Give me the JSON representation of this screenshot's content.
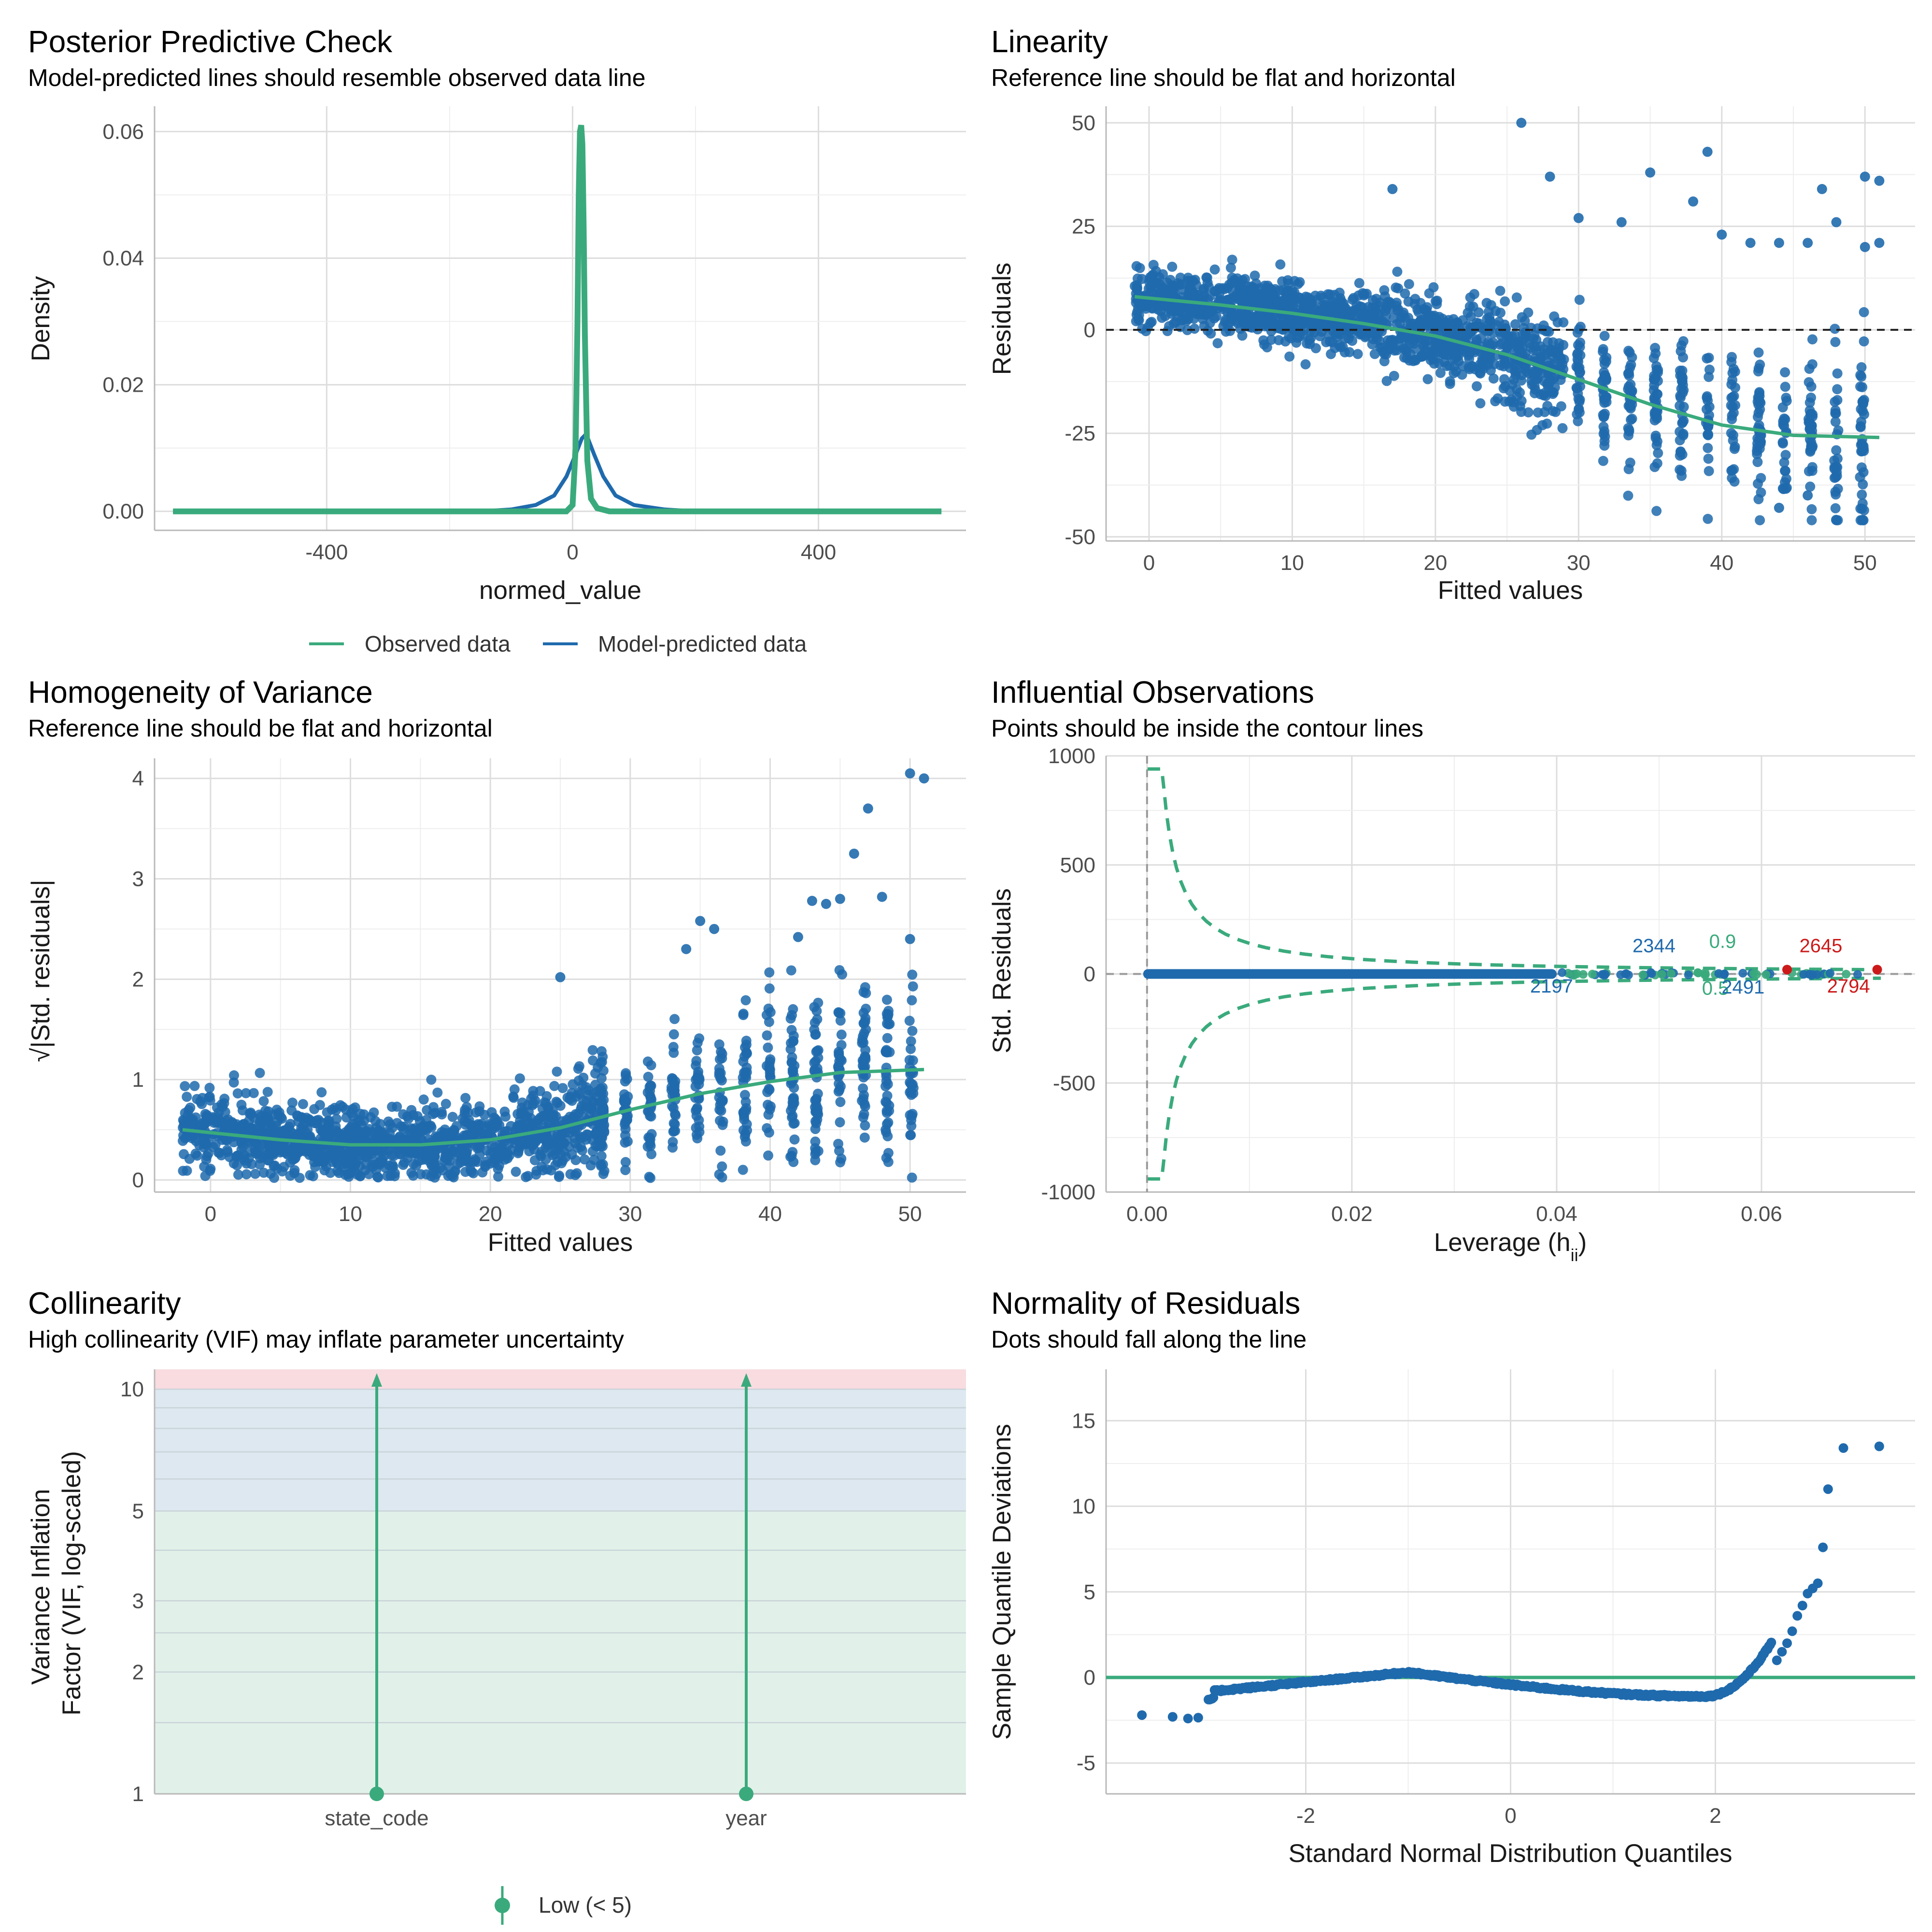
{
  "colors": {
    "observed": "#3aaa7c",
    "predicted": "#1f6aad",
    "points": "#1f6aad",
    "smooth": "#3aaa7c",
    "label_blue": "#1f6aad",
    "label_green": "#3aaa7c",
    "label_red": "#cc1a1a",
    "zone_low": "#e1f1ea",
    "zone_moderate": "#dde8f0",
    "zone_high": "#f8dce0",
    "grid_major": "#dddddd",
    "grid_minor": "#eeeeee",
    "axis": "#b9b9b9"
  },
  "chart_data": [
    {
      "id": "ppc",
      "type": "line",
      "title": "Posterior Predictive Check",
      "subtitle": "Model-predicted lines should resemble observed data line",
      "xlabel": "normed_value",
      "ylabel": "Density",
      "xlim": [
        -680,
        640
      ],
      "ylim": [
        -0.003,
        0.064
      ],
      "x_ticks": [
        -400,
        0,
        400
      ],
      "x_tick_labels": [
        "-400",
        "0",
        "400"
      ],
      "y_ticks": [
        0,
        0.02,
        0.04,
        0.06
      ],
      "y_tick_labels": [
        "0.00",
        "0.02",
        "0.04",
        "0.06"
      ],
      "legend": [
        "Observed data",
        "Model-predicted data"
      ],
      "legend_position": "bottom",
      "series": [
        {
          "name": "Model-predicted data",
          "x": [
            -650,
            -150,
            -100,
            -60,
            -30,
            -10,
            5,
            15,
            20,
            25,
            35,
            50,
            70,
            100,
            150,
            200,
            600
          ],
          "y": [
            0,
            0,
            0.0003,
            0.001,
            0.0025,
            0.0055,
            0.009,
            0.0115,
            0.012,
            0.0115,
            0.009,
            0.0055,
            0.0025,
            0.001,
            0.0003,
            0,
            0
          ]
        },
        {
          "name": "Observed data",
          "x": [
            -650,
            -10,
            0,
            5,
            8,
            10,
            12,
            14,
            16,
            18,
            20,
            24,
            30,
            40,
            60,
            600
          ],
          "y": [
            0,
            0,
            0.001,
            0.01,
            0.03,
            0.05,
            0.06,
            0.061,
            0.058,
            0.045,
            0.028,
            0.008,
            0.002,
            0.0005,
            0,
            0
          ]
        }
      ]
    },
    {
      "id": "linearity",
      "type": "scatter",
      "title": "Linearity",
      "subtitle": "Reference line should be flat and horizontal",
      "xlabel": "Fitted values",
      "ylabel": "Residuals",
      "xlim": [
        -3,
        53.5
      ],
      "ylim": [
        -51,
        54
      ],
      "x_ticks": [
        0,
        10,
        20,
        30,
        40,
        50
      ],
      "x_tick_labels": [
        "0",
        "10",
        "20",
        "30",
        "40",
        "50"
      ],
      "y_ticks": [
        -50,
        -25,
        0,
        25,
        50
      ],
      "y_tick_labels": [
        "-50",
        "-25",
        "0",
        "25",
        "50"
      ],
      "reference_line": 0,
      "outliers": [
        [
          26,
          50
        ],
        [
          39,
          43
        ],
        [
          50,
          37
        ],
        [
          51,
          36
        ],
        [
          47,
          34
        ],
        [
          17,
          34
        ],
        [
          28,
          37
        ],
        [
          35,
          38
        ],
        [
          30,
          27
        ],
        [
          33,
          26
        ],
        [
          38,
          31
        ],
        [
          42,
          21
        ],
        [
          44,
          21
        ],
        [
          46,
          21
        ],
        [
          48,
          26
        ],
        [
          40,
          23
        ],
        [
          50,
          20
        ],
        [
          51,
          21
        ],
        [
          46,
          -40
        ],
        [
          44,
          -43
        ]
      ],
      "smooth": {
        "x": [
          -1,
          5,
          10,
          15,
          20,
          25,
          30,
          35,
          40,
          45,
          51
        ],
        "y": [
          8,
          6,
          4,
          1.5,
          -1.5,
          -6,
          -12,
          -18,
          -23,
          -25.5,
          -26
        ]
      }
    },
    {
      "id": "homogeneity",
      "type": "scatter",
      "title": "Homogeneity of Variance",
      "subtitle": "Reference line should be flat and horizontal",
      "xlabel": "Fitted values",
      "ylabel": "√|Std. residuals|",
      "xlim": [
        -4,
        54
      ],
      "ylim": [
        -0.12,
        4.2
      ],
      "x_ticks": [
        0,
        10,
        20,
        30,
        40,
        50
      ],
      "x_tick_labels": [
        "0",
        "10",
        "20",
        "30",
        "40",
        "50"
      ],
      "y_ticks": [
        0,
        1,
        2,
        3,
        4
      ],
      "y_tick_labels": [
        "0",
        "1",
        "2",
        "3",
        "4"
      ],
      "outliers": [
        [
          50,
          4.05
        ],
        [
          51,
          4.0
        ],
        [
          47,
          3.7
        ],
        [
          46,
          3.25
        ],
        [
          35,
          2.58
        ],
        [
          36,
          2.5
        ],
        [
          43,
          2.78
        ],
        [
          45,
          2.8
        ],
        [
          48,
          2.82
        ],
        [
          50,
          2.4
        ],
        [
          25,
          2.02
        ],
        [
          34,
          2.3
        ],
        [
          44,
          2.75
        ],
        [
          42,
          2.42
        ]
      ],
      "smooth": {
        "x": [
          -2,
          5,
          10,
          15,
          20,
          25,
          30,
          35,
          40,
          45,
          51
        ],
        "y": [
          0.5,
          0.4,
          0.35,
          0.35,
          0.4,
          0.52,
          0.7,
          0.86,
          0.98,
          1.07,
          1.1
        ]
      }
    },
    {
      "id": "influential",
      "type": "scatter",
      "title": "Influential Observations",
      "subtitle": "Points should be inside the contour lines",
      "xlabel": "Leverage (h",
      "xlabel_sub": "ii",
      "xlabel_end": ")",
      "ylabel": "Std. Residuals",
      "xlim": [
        -0.004,
        0.075
      ],
      "ylim": [
        -1000,
        1000
      ],
      "x_ticks": [
        0,
        0.02,
        0.04,
        0.06
      ],
      "x_tick_labels": [
        "0.00",
        "0.02",
        "0.04",
        "0.06"
      ],
      "y_ticks": [
        -1000,
        -500,
        0,
        500,
        1000
      ],
      "y_tick_labels": [
        "-1000",
        "-500",
        "0",
        "500",
        "1000"
      ],
      "point_labels": [
        {
          "text": "2344",
          "x": 0.0495,
          "y": 100,
          "color": "blue"
        },
        {
          "text": "0.9",
          "x": 0.0562,
          "y": 120,
          "color": "green"
        },
        {
          "text": "2645",
          "x": 0.0658,
          "y": 100,
          "color": "red"
        },
        {
          "text": "2197",
          "x": 0.0395,
          "y": -85,
          "color": "blue"
        },
        {
          "text": "0.5",
          "x": 0.0555,
          "y": -95,
          "color": "green"
        },
        {
          "text": "2491",
          "x": 0.0582,
          "y": -90,
          "color": "blue"
        },
        {
          "text": "2794",
          "x": 0.0685,
          "y": -85,
          "color": "red"
        }
      ],
      "red_points": [
        [
          0.0625,
          20
        ],
        [
          0.0713,
          20
        ]
      ]
    },
    {
      "id": "collinearity",
      "type": "bar",
      "title": "Collinearity",
      "subtitle": "High collinearity (VIF) may inflate parameter uncertainty",
      "xlabel": "",
      "ylabel": "Variance Inflation\nFactor (VIF, log-scaled)",
      "ylabel_lines": [
        "Variance Inflation",
        "Factor (VIF, log-scaled)"
      ],
      "log_scale": true,
      "ylim": [
        1,
        11.2
      ],
      "y_ticks": [
        1,
        2,
        3,
        5,
        10
      ],
      "y_tick_labels": [
        "1",
        "2",
        "3",
        "5",
        "10"
      ],
      "categories": [
        "state_code",
        "year"
      ],
      "zones": [
        {
          "name": "low",
          "from": 1,
          "to": 5
        },
        {
          "name": "moderate",
          "from": 5,
          "to": 10
        },
        {
          "name": "high",
          "from": 10,
          "to": 11.2
        }
      ],
      "legend": [
        "Low (< 5)"
      ],
      "legend_position": "bottom"
    },
    {
      "id": "normality",
      "type": "scatter",
      "title": "Normality of Residuals",
      "subtitle": "Dots should fall along the line",
      "xlabel": "Standard Normal Distribution Quantiles",
      "ylabel": "Sample Quantile Deviations",
      "xlim": [
        -3.95,
        3.95
      ],
      "ylim": [
        -6.8,
        18
      ],
      "x_ticks": [
        -2,
        0,
        2
      ],
      "x_tick_labels": [
        "-2",
        "0",
        "2"
      ],
      "y_ticks": [
        -5,
        0,
        5,
        10,
        15
      ],
      "y_tick_labels": [
        "-5",
        "0",
        "5",
        "10",
        "15"
      ],
      "reference_line": 0,
      "tail_points": [
        [
          -3.6,
          -2.2
        ],
        [
          -3.3,
          -2.3
        ],
        [
          -3.15,
          -2.4
        ],
        [
          -3.05,
          -2.35
        ],
        [
          2.6,
          1.0
        ],
        [
          2.65,
          1.5
        ],
        [
          2.7,
          2.0
        ],
        [
          2.75,
          2.7
        ],
        [
          2.8,
          3.6
        ],
        [
          2.85,
          4.2
        ],
        [
          2.9,
          4.9
        ],
        [
          2.95,
          5.2
        ],
        [
          3.0,
          5.5
        ],
        [
          3.05,
          7.6
        ],
        [
          3.1,
          11.0
        ],
        [
          3.25,
          13.4
        ],
        [
          3.6,
          13.5
        ]
      ]
    }
  ]
}
